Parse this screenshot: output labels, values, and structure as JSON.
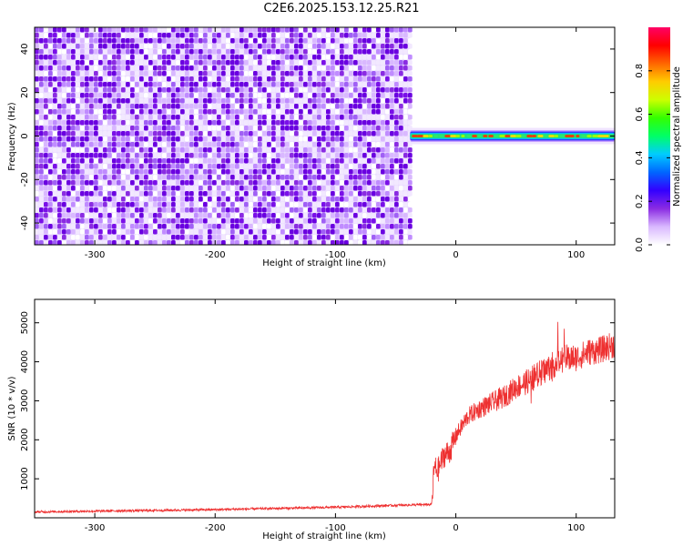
{
  "title": "C2E6.2025.153.12.25.R21",
  "chart_data": [
    {
      "type": "heatmap",
      "xlabel": "Height of straight line (km)",
      "ylabel": "Frequency (Hz)",
      "xlim": [
        -350,
        132
      ],
      "ylim": [
        -50,
        50
      ],
      "x_ticks": [
        -300,
        -200,
        -100,
        0,
        100
      ],
      "y_ticks": [
        -40,
        -20,
        0,
        20,
        40
      ],
      "colorbar": {
        "label": "Normalized spectral amplitude",
        "range": [
          0.0,
          1.0
        ],
        "ticks": [
          0.0,
          0.2,
          0.4,
          0.6,
          0.8
        ],
        "colors": [
          "#ffffff",
          "#d9b8ff",
          "#8a2be2",
          "#3300ff",
          "#0066ff",
          "#00ccff",
          "#00ff66",
          "#33ff00",
          "#ccff00",
          "#ffcc00",
          "#ff6600",
          "#ff0000",
          "#ff0066"
        ]
      },
      "regions": [
        {
          "x_range": [
            -350,
            -38
          ],
          "freq_range": [
            -50,
            50
          ],
          "amplitude": "0.0-0.2 random noise"
        },
        {
          "x_range": [
            -38,
            132
          ],
          "freq_range": [
            -3,
            3
          ],
          "center_freq": 0,
          "amplitude": "0.4-0.9"
        },
        {
          "x_range": [
            -38,
            132
          ],
          "freq_range": [
            -50,
            -3
          ],
          "amplitude": 0.0
        },
        {
          "x_range": [
            -38,
            132
          ],
          "freq_range": [
            3,
            50
          ],
          "amplitude": 0.0
        }
      ]
    },
    {
      "type": "line",
      "xlabel": "Height of straight line (km)",
      "ylabel": "SNR (10 * v/v)",
      "xlim": [
        -350,
        132
      ],
      "ylim": [
        0,
        5600
      ],
      "x_ticks": [
        -300,
        -200,
        -100,
        0,
        100
      ],
      "y_ticks": [
        1000,
        2000,
        3000,
        4000,
        5000
      ],
      "series": [
        {
          "color": "#ee3030",
          "x": [
            -350,
            -300,
            -250,
            -200,
            -150,
            -100,
            -50,
            -20,
            -18,
            -15,
            -10,
            -5,
            0,
            10,
            20,
            30,
            40,
            50,
            60,
            70,
            80,
            90,
            100,
            110,
            120,
            132
          ],
          "y": [
            150,
            170,
            190,
            210,
            240,
            270,
            320,
            340,
            1300,
            1200,
            1600,
            1700,
            2100,
            2600,
            2800,
            2950,
            3100,
            3350,
            3500,
            3700,
            3900,
            4100,
            4100,
            4250,
            4300,
            4450
          ]
        }
      ]
    }
  ]
}
